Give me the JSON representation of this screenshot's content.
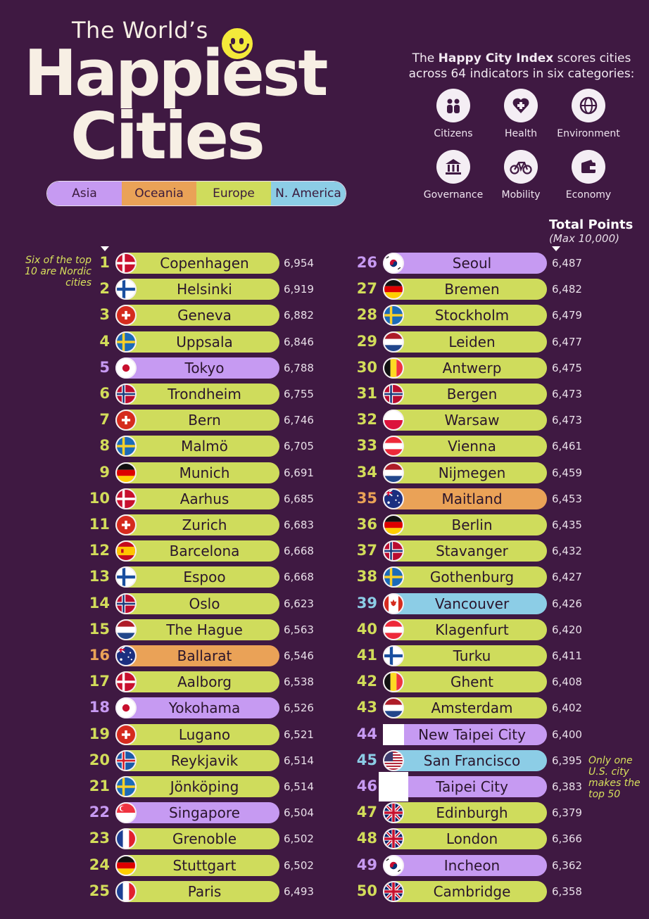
{
  "header": {
    "title_line1": "The World’s",
    "title_line2": "Happiest",
    "title_line3": "Cities"
  },
  "legend": [
    {
      "label": "Asia",
      "color": "#c69af2"
    },
    {
      "label": "Oceania",
      "color": "#eaa257"
    },
    {
      "label": "Europe",
      "color": "#cfdc5c"
    },
    {
      "label": "N. America",
      "color": "#8ccde6"
    }
  ],
  "intro": {
    "pre": "The ",
    "bold": "Happy City Index",
    "post": " scores cities across 64 indicators in six categories:"
  },
  "categories": [
    {
      "label": "Citizens",
      "icon": "people-icon"
    },
    {
      "label": "Health",
      "icon": "medical-cross-icon"
    },
    {
      "label": "Environment",
      "icon": "globe-icon"
    },
    {
      "label": "Governance",
      "icon": "government-building-icon"
    },
    {
      "label": "Mobility",
      "icon": "bicycle-icon"
    },
    {
      "label": "Economy",
      "icon": "wallet-icon"
    }
  ],
  "total_points": {
    "label": "Total Points",
    "sub": "(Max 10,000)"
  },
  "notes": {
    "nordic": "Six of the top 10 are Nordic cities",
    "us": "Only one U.S. city makes the top 50"
  },
  "cities": [
    {
      "rank": "1",
      "name": "Copenhagen",
      "points": "6,954",
      "region": "eur",
      "flag": "denmark-flag"
    },
    {
      "rank": "2",
      "name": "Helsinki",
      "points": "6,919",
      "region": "eur",
      "flag": "finland-flag"
    },
    {
      "rank": "3",
      "name": "Geneva",
      "points": "6,882",
      "region": "eur",
      "flag": "switzerland-flag"
    },
    {
      "rank": "4",
      "name": "Uppsala",
      "points": "6,846",
      "region": "eur",
      "flag": "sweden-flag"
    },
    {
      "rank": "5",
      "name": "Tokyo",
      "points": "6,788",
      "region": "asia",
      "flag": "japan-flag"
    },
    {
      "rank": "6",
      "name": "Trondheim",
      "points": "6,755",
      "region": "eur",
      "flag": "norway-flag"
    },
    {
      "rank": "7",
      "name": "Bern",
      "points": "6,746",
      "region": "eur",
      "flag": "switzerland-flag"
    },
    {
      "rank": "8",
      "name": "Malmö",
      "points": "6,705",
      "region": "eur",
      "flag": "sweden-flag"
    },
    {
      "rank": "9",
      "name": "Munich",
      "points": "6,691",
      "region": "eur",
      "flag": "germany-flag"
    },
    {
      "rank": "10",
      "name": "Aarhus",
      "points": "6,685",
      "region": "eur",
      "flag": "denmark-flag"
    },
    {
      "rank": "11",
      "name": "Zurich",
      "points": "6,683",
      "region": "eur",
      "flag": "switzerland-flag"
    },
    {
      "rank": "12",
      "name": "Barcelona",
      "points": "6,668",
      "region": "eur",
      "flag": "spain-flag"
    },
    {
      "rank": "13",
      "name": "Espoo",
      "points": "6,668",
      "region": "eur",
      "flag": "finland-flag"
    },
    {
      "rank": "14",
      "name": "Oslo",
      "points": "6,623",
      "region": "eur",
      "flag": "norway-flag"
    },
    {
      "rank": "15",
      "name": "The Hague",
      "points": "6,563",
      "region": "eur",
      "flag": "netherlands-flag"
    },
    {
      "rank": "16",
      "name": "Ballarat",
      "points": "6,546",
      "region": "oce",
      "flag": "australia-flag"
    },
    {
      "rank": "17",
      "name": "Aalborg",
      "points": "6,538",
      "region": "eur",
      "flag": "denmark-flag"
    },
    {
      "rank": "18",
      "name": "Yokohama",
      "points": "6,526",
      "region": "asia",
      "flag": "japan-flag"
    },
    {
      "rank": "19",
      "name": "Lugano",
      "points": "6,521",
      "region": "eur",
      "flag": "switzerland-flag"
    },
    {
      "rank": "20",
      "name": "Reykjavik",
      "points": "6,514",
      "region": "eur",
      "flag": "iceland-flag"
    },
    {
      "rank": "21",
      "name": "Jönköping",
      "points": "6,514",
      "region": "eur",
      "flag": "sweden-flag"
    },
    {
      "rank": "22",
      "name": "Singapore",
      "points": "6,504",
      "region": "asia",
      "flag": "singapore-flag"
    },
    {
      "rank": "23",
      "name": "Grenoble",
      "points": "6,502",
      "region": "eur",
      "flag": "france-flag"
    },
    {
      "rank": "24",
      "name": "Stuttgart",
      "points": "6,502",
      "region": "eur",
      "flag": "germany-flag"
    },
    {
      "rank": "25",
      "name": "Paris",
      "points": "6,493",
      "region": "eur",
      "flag": "france-flag"
    },
    {
      "rank": "26",
      "name": "Seoul",
      "points": "6,487",
      "region": "asia",
      "flag": "south-korea-flag"
    },
    {
      "rank": "27",
      "name": "Bremen",
      "points": "6,482",
      "region": "eur",
      "flag": "germany-flag"
    },
    {
      "rank": "28",
      "name": "Stockholm",
      "points": "6,479",
      "region": "eur",
      "flag": "sweden-flag"
    },
    {
      "rank": "29",
      "name": "Leiden",
      "points": "6,477",
      "region": "eur",
      "flag": "netherlands-flag"
    },
    {
      "rank": "30",
      "name": "Antwerp",
      "points": "6,475",
      "region": "eur",
      "flag": "belgium-flag"
    },
    {
      "rank": "31",
      "name": "Bergen",
      "points": "6,473",
      "region": "eur",
      "flag": "norway-flag"
    },
    {
      "rank": "32",
      "name": "Warsaw",
      "points": "6,473",
      "region": "eur",
      "flag": "poland-flag"
    },
    {
      "rank": "33",
      "name": "Vienna",
      "points": "6,461",
      "region": "eur",
      "flag": "austria-flag"
    },
    {
      "rank": "34",
      "name": "Nijmegen",
      "points": "6,459",
      "region": "eur",
      "flag": "netherlands-flag"
    },
    {
      "rank": "35",
      "name": "Maitland",
      "points": "6,453",
      "region": "oce",
      "flag": "australia-flag"
    },
    {
      "rank": "36",
      "name": "Berlin",
      "points": "6,435",
      "region": "eur",
      "flag": "germany-flag"
    },
    {
      "rank": "37",
      "name": "Stavanger",
      "points": "6,432",
      "region": "eur",
      "flag": "norway-flag"
    },
    {
      "rank": "38",
      "name": "Gothenburg",
      "points": "6,427",
      "region": "eur",
      "flag": "sweden-flag"
    },
    {
      "rank": "39",
      "name": "Vancouver",
      "points": "6,426",
      "region": "na",
      "flag": "canada-flag"
    },
    {
      "rank": "40",
      "name": "Klagenfurt",
      "points": "6,420",
      "region": "eur",
      "flag": "austria-flag"
    },
    {
      "rank": "41",
      "name": "Turku",
      "points": "6,411",
      "region": "eur",
      "flag": "finland-flag"
    },
    {
      "rank": "42",
      "name": "Ghent",
      "points": "6,408",
      "region": "eur",
      "flag": "belgium-flag"
    },
    {
      "rank": "43",
      "name": "Amsterdam",
      "points": "6,402",
      "region": "eur",
      "flag": "netherlands-flag"
    },
    {
      "rank": "44",
      "name": "New Taipei City",
      "points": "6,400",
      "region": "asia",
      "flag": "blank-flag"
    },
    {
      "rank": "45",
      "name": "San Francisco",
      "points": "6,395",
      "region": "na",
      "flag": "usa-flag"
    },
    {
      "rank": "46",
      "name": "Taipei City",
      "points": "6,383",
      "region": "asia",
      "flag": "blank-flag"
    },
    {
      "rank": "47",
      "name": "Edinburgh",
      "points": "6,379",
      "region": "eur",
      "flag": "uk-flag"
    },
    {
      "rank": "48",
      "name": "London",
      "points": "6,366",
      "region": "eur",
      "flag": "uk-flag"
    },
    {
      "rank": "49",
      "name": "Incheon",
      "points": "6,362",
      "region": "asia",
      "flag": "south-korea-flag"
    },
    {
      "rank": "50",
      "name": "Cambridge",
      "points": "6,358",
      "region": "eur",
      "flag": "uk-flag"
    }
  ]
}
